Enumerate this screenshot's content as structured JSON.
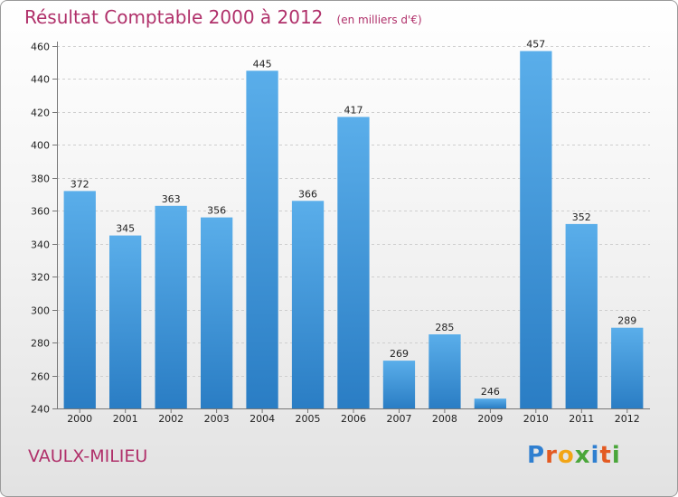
{
  "title": "Résultat Comptable 2000 à 2012",
  "subtitle": "(en milliers d'€)",
  "place": "VAULX-MILIEU",
  "logo": {
    "letters": [
      "P",
      "r",
      "o",
      "x",
      "i",
      "t",
      "i"
    ],
    "colors": [
      "#2f7fd0",
      "#e35a22",
      "#f2a516",
      "#4aa63a",
      "#2f7fd0",
      "#e35a22",
      "#4aa63a"
    ]
  },
  "colors": {
    "bar_top": "#5aaeea",
    "bar_bottom": "#2a7dc4",
    "title": "#b0306a"
  },
  "chart_data": {
    "type": "bar",
    "categories": [
      "2000",
      "2001",
      "2002",
      "2003",
      "2004",
      "2005",
      "2006",
      "2007",
      "2008",
      "2009",
      "2010",
      "2011",
      "2012"
    ],
    "values": [
      372,
      345,
      363,
      356,
      445,
      366,
      417,
      269,
      285,
      246,
      457,
      352,
      289
    ],
    "ylim": [
      240,
      460
    ],
    "yticks": [
      240,
      260,
      280,
      300,
      320,
      340,
      360,
      380,
      400,
      420,
      440,
      460
    ],
    "grid": true,
    "title": "Résultat Comptable 2000 à 2012",
    "subtitle": "(en milliers d'€)",
    "xlabel": "",
    "ylabel": ""
  }
}
